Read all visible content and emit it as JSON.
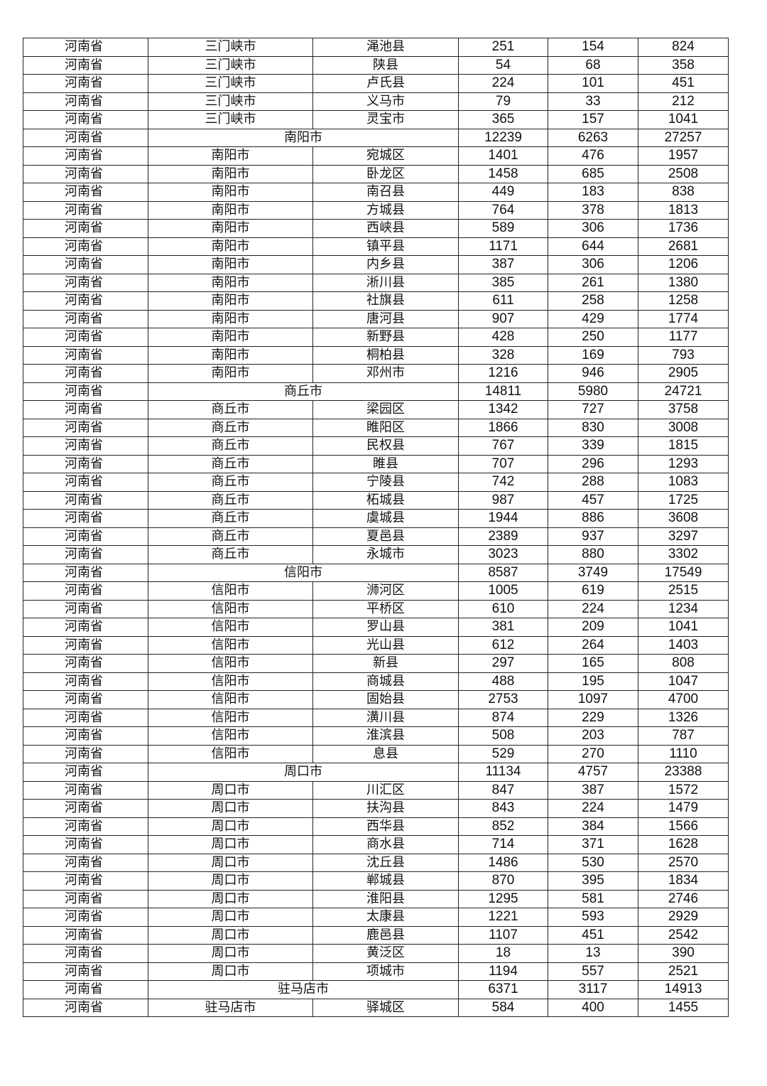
{
  "table": {
    "rows": [
      [
        "河南省",
        "三门峡市",
        "渑池县",
        "251",
        "154",
        "824"
      ],
      [
        "河南省",
        "三门峡市",
        "陕县",
        "54",
        "68",
        "358"
      ],
      [
        "河南省",
        "三门峡市",
        "卢氏县",
        "224",
        "101",
        "451"
      ],
      [
        "河南省",
        "三门峡市",
        "义马市",
        "79",
        "33",
        "212"
      ],
      [
        "河南省",
        "三门峡市",
        "灵宝市",
        "365",
        "157",
        "1041"
      ],
      [
        "河南省",
        "南阳市",
        "",
        "12239",
        "6263",
        "27257"
      ],
      [
        "河南省",
        "南阳市",
        "宛城区",
        "1401",
        "476",
        "1957"
      ],
      [
        "河南省",
        "南阳市",
        "卧龙区",
        "1458",
        "685",
        "2508"
      ],
      [
        "河南省",
        "南阳市",
        "南召县",
        "449",
        "183",
        "838"
      ],
      [
        "河南省",
        "南阳市",
        "方城县",
        "764",
        "378",
        "1813"
      ],
      [
        "河南省",
        "南阳市",
        "西峡县",
        "589",
        "306",
        "1736"
      ],
      [
        "河南省",
        "南阳市",
        "镇平县",
        "1171",
        "644",
        "2681"
      ],
      [
        "河南省",
        "南阳市",
        "内乡县",
        "387",
        "306",
        "1206"
      ],
      [
        "河南省",
        "南阳市",
        "淅川县",
        "385",
        "261",
        "1380"
      ],
      [
        "河南省",
        "南阳市",
        "社旗县",
        "611",
        "258",
        "1258"
      ],
      [
        "河南省",
        "南阳市",
        "唐河县",
        "907",
        "429",
        "1774"
      ],
      [
        "河南省",
        "南阳市",
        "新野县",
        "428",
        "250",
        "1177"
      ],
      [
        "河南省",
        "南阳市",
        "桐柏县",
        "328",
        "169",
        "793"
      ],
      [
        "河南省",
        "南阳市",
        "邓州市",
        "1216",
        "946",
        "2905"
      ],
      [
        "河南省",
        "商丘市",
        "",
        "14811",
        "5980",
        "24721"
      ],
      [
        "河南省",
        "商丘市",
        "梁园区",
        "1342",
        "727",
        "3758"
      ],
      [
        "河南省",
        "商丘市",
        "睢阳区",
        "1866",
        "830",
        "3008"
      ],
      [
        "河南省",
        "商丘市",
        "民权县",
        "767",
        "339",
        "1815"
      ],
      [
        "河南省",
        "商丘市",
        "睢县",
        "707",
        "296",
        "1293"
      ],
      [
        "河南省",
        "商丘市",
        "宁陵县",
        "742",
        "288",
        "1083"
      ],
      [
        "河南省",
        "商丘市",
        "柘城县",
        "987",
        "457",
        "1725"
      ],
      [
        "河南省",
        "商丘市",
        "虞城县",
        "1944",
        "886",
        "3608"
      ],
      [
        "河南省",
        "商丘市",
        "夏邑县",
        "2389",
        "937",
        "3297"
      ],
      [
        "河南省",
        "商丘市",
        "永城市",
        "3023",
        "880",
        "3302"
      ],
      [
        "河南省",
        "信阳市",
        "",
        "8587",
        "3749",
        "17549"
      ],
      [
        "河南省",
        "信阳市",
        "浉河区",
        "1005",
        "619",
        "2515"
      ],
      [
        "河南省",
        "信阳市",
        "平桥区",
        "610",
        "224",
        "1234"
      ],
      [
        "河南省",
        "信阳市",
        "罗山县",
        "381",
        "209",
        "1041"
      ],
      [
        "河南省",
        "信阳市",
        "光山县",
        "612",
        "264",
        "1403"
      ],
      [
        "河南省",
        "信阳市",
        "新县",
        "297",
        "165",
        "808"
      ],
      [
        "河南省",
        "信阳市",
        "商城县",
        "488",
        "195",
        "1047"
      ],
      [
        "河南省",
        "信阳市",
        "固始县",
        "2753",
        "1097",
        "4700"
      ],
      [
        "河南省",
        "信阳市",
        "潢川县",
        "874",
        "229",
        "1326"
      ],
      [
        "河南省",
        "信阳市",
        "淮滨县",
        "508",
        "203",
        "787"
      ],
      [
        "河南省",
        "信阳市",
        "息县",
        "529",
        "270",
        "1110"
      ],
      [
        "河南省",
        "周口市",
        "",
        "11134",
        "4757",
        "23388"
      ],
      [
        "河南省",
        "周口市",
        "川汇区",
        "847",
        "387",
        "1572"
      ],
      [
        "河南省",
        "周口市",
        "扶沟县",
        "843",
        "224",
        "1479"
      ],
      [
        "河南省",
        "周口市",
        "西华县",
        "852",
        "384",
        "1566"
      ],
      [
        "河南省",
        "周口市",
        "商水县",
        "714",
        "371",
        "1628"
      ],
      [
        "河南省",
        "周口市",
        "沈丘县",
        "1486",
        "530",
        "2570"
      ],
      [
        "河南省",
        "周口市",
        "郸城县",
        "870",
        "395",
        "1834"
      ],
      [
        "河南省",
        "周口市",
        "淮阳县",
        "1295",
        "581",
        "2746"
      ],
      [
        "河南省",
        "周口市",
        "太康县",
        "1221",
        "593",
        "2929"
      ],
      [
        "河南省",
        "周口市",
        "鹿邑县",
        "1107",
        "451",
        "2542"
      ],
      [
        "河南省",
        "周口市",
        "黄泛区",
        "18",
        "13",
        "390"
      ],
      [
        "河南省",
        "周口市",
        "项城市",
        "1194",
        "557",
        "2521"
      ],
      [
        "河南省",
        "驻马店市",
        "",
        "6371",
        "3117",
        "14913"
      ],
      [
        "河南省",
        "驻马店市",
        "驿城区",
        "584",
        "400",
        "1455"
      ]
    ]
  }
}
